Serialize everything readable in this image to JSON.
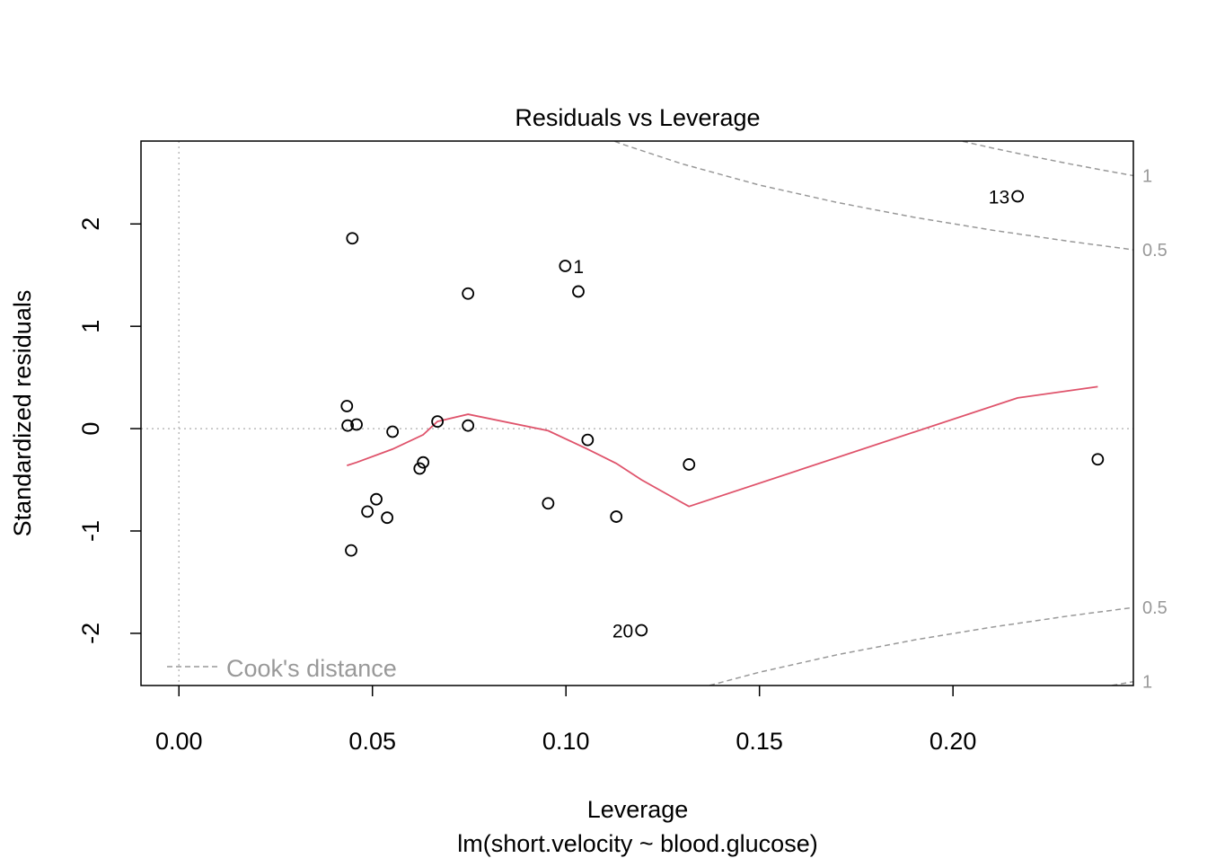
{
  "chart_data": {
    "type": "scatter",
    "title": "Residuals vs Leverage",
    "xlabel": "Leverage",
    "subtitle": "lm(short.velocity ~ blood.glucose)",
    "ylabel": "Standardized residuals",
    "xlim": [
      -0.0098,
      0.2466
    ],
    "ylim": [
      -2.51,
      2.81
    ],
    "xticks": [
      {
        "value": 0,
        "label": "0.00"
      },
      {
        "value": 0.05,
        "label": "0.05"
      },
      {
        "value": 0.1,
        "label": "0.10"
      },
      {
        "value": 0.15,
        "label": "0.15"
      },
      {
        "value": 0.2,
        "label": "0.20"
      }
    ],
    "yticks": [
      -2,
      -1,
      0,
      1,
      2
    ],
    "x": [
      0.0448,
      0.0998,
      0.1032,
      0.0747,
      0.2167,
      0.0434,
      0.0436,
      0.0459,
      0.0552,
      0.0668,
      0.0747,
      0.1056,
      0.0631,
      0.0622,
      0.1318,
      0.2374,
      0.051,
      0.0487,
      0.0538,
      0.0954,
      0.113,
      0.0445,
      0.1195
    ],
    "values": [
      1.86,
      1.59,
      1.34,
      1.32,
      2.27,
      0.22,
      0.03,
      0.04,
      -0.03,
      0.07,
      0.03,
      -0.11,
      -0.33,
      -0.39,
      -0.35,
      -0.3,
      -0.69,
      -0.81,
      -0.87,
      -0.73,
      -0.86,
      -1.19,
      -1.97
    ],
    "labels": [
      null,
      "1",
      null,
      null,
      "13",
      null,
      null,
      null,
      null,
      null,
      null,
      null,
      null,
      null,
      null,
      null,
      null,
      null,
      null,
      null,
      null,
      null,
      "20"
    ],
    "point_color": "#000000",
    "smooth": {
      "color": "#DF536B",
      "x": [
        0.0434,
        0.0459,
        0.0552,
        0.0631,
        0.0668,
        0.0747,
        0.0954,
        0.1056,
        0.113,
        0.1195,
        0.1318,
        0.2167,
        0.2374
      ],
      "values": [
        -0.36,
        -0.33,
        -0.2,
        -0.06,
        0.07,
        0.14,
        -0.02,
        -0.2,
        -0.34,
        -0.5,
        -0.76,
        0.3,
        0.41
      ]
    },
    "cooks": {
      "name": "Cook's distance",
      "color": "#999999",
      "legend": "bottomleft",
      "curves": [
        {
          "label": "1",
          "x": [
            0.2025,
            0.21,
            0.22,
            0.23,
            0.24,
            0.2466
          ],
          "values": [
            2.807,
            2.743,
            2.663,
            2.588,
            2.517,
            2.472
          ]
        },
        {
          "label": "0.5",
          "x": [
            0.1126,
            0.115,
            0.13,
            0.15,
            0.17,
            0.19,
            0.21,
            0.23,
            0.2466
          ],
          "values": [
            2.807,
            2.774,
            2.587,
            2.38,
            2.21,
            2.065,
            1.94,
            1.83,
            1.748
          ]
        },
        {
          "label": "0.5",
          "x": [
            0.1371,
            0.15,
            0.17,
            0.19,
            0.21,
            0.23,
            0.2466
          ],
          "values": [
            -2.509,
            -2.38,
            -2.21,
            -2.065,
            -1.94,
            -1.83,
            -1.748
          ]
        },
        {
          "label": "1",
          "x": [
            0.2411,
            0.2466
          ],
          "values": [
            -2.509,
            -2.472
          ]
        }
      ]
    },
    "reference_lines": {
      "x": 0,
      "y": 0
    }
  }
}
